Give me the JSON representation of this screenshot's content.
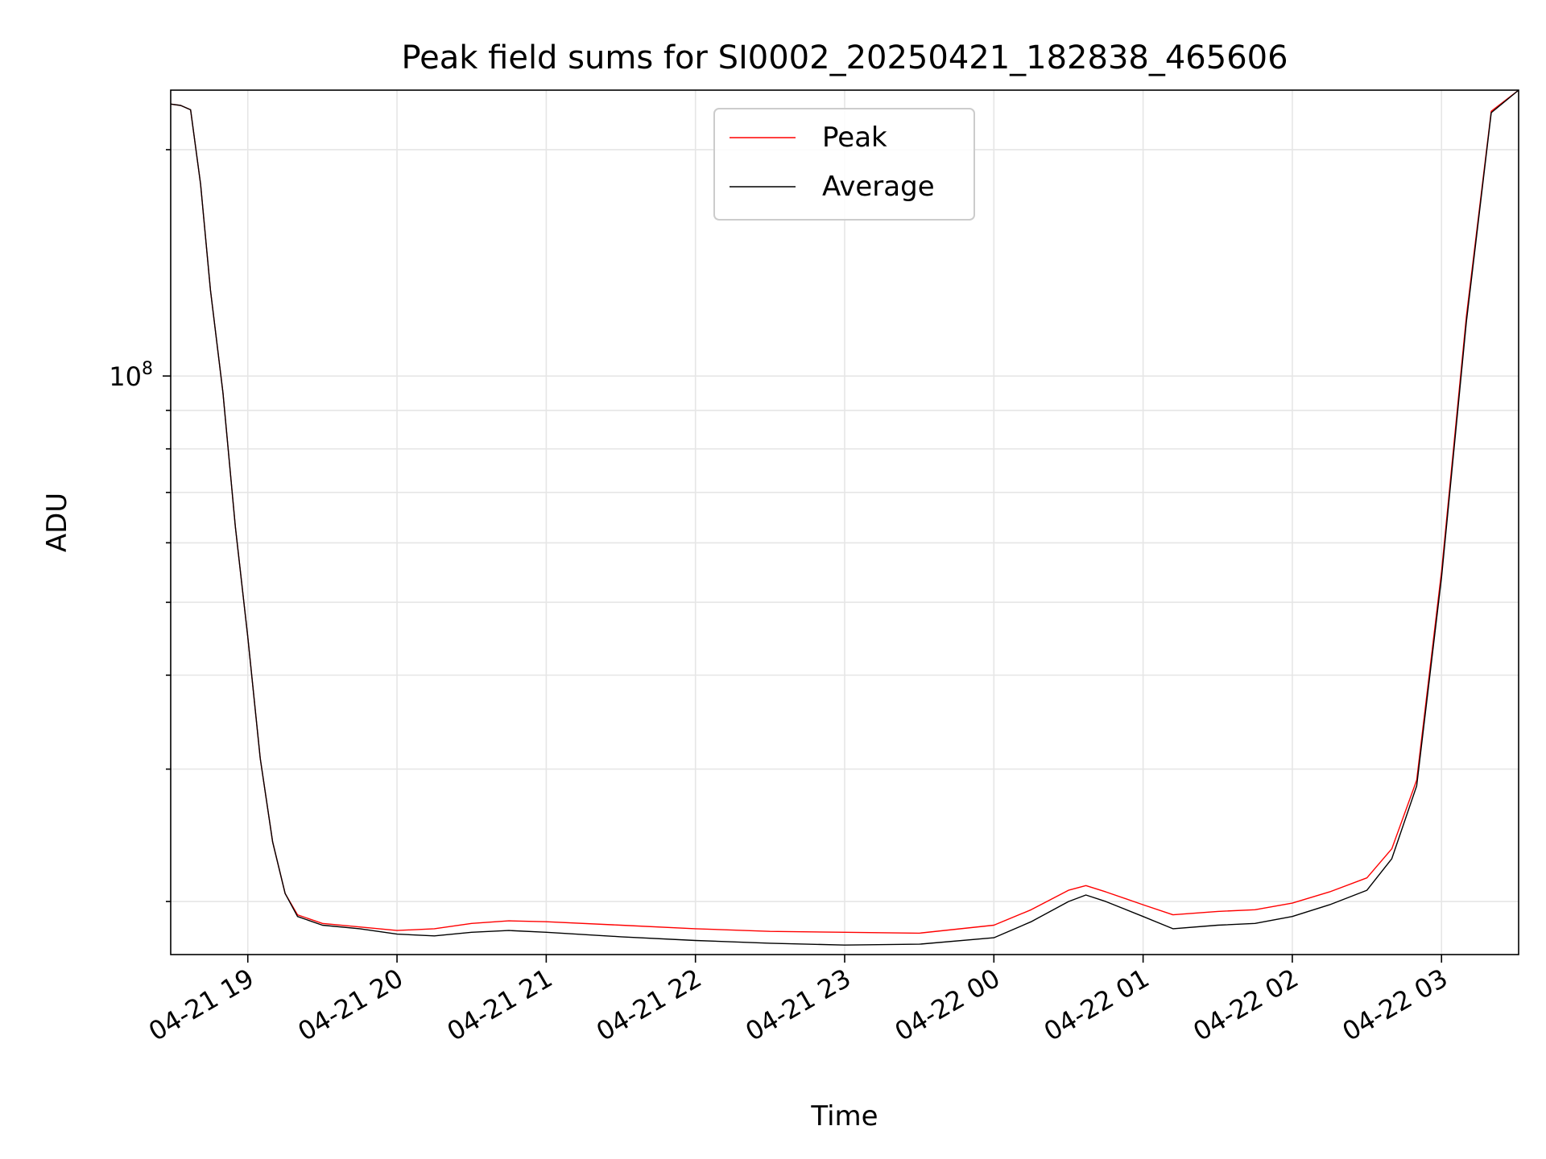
{
  "chart_data": {
    "type": "line",
    "title": "Peak field sums for SI0002_20250421_182838_465606",
    "xlabel": "Time",
    "ylabel": "ADU",
    "y_scale": "log",
    "ylim": [
      17000000,
      240000000
    ],
    "xlim": [
      "2025-04-21 18:29",
      "2025-04-22 03:31"
    ],
    "x_ticks": [
      "04-21 19",
      "04-21 20",
      "04-21 21",
      "04-21 22",
      "04-21 23",
      "04-22 00",
      "04-22 01",
      "04-22 02",
      "04-22 03"
    ],
    "y_tick_label": {
      "base": "10",
      "exponent": "8",
      "value": 100000000
    },
    "grid": true,
    "legend_position": "top-center",
    "colors": {
      "peak": "#ff0000",
      "average": "#000000",
      "grid": "#e6e6e6"
    },
    "series": [
      {
        "name": "Peak",
        "x": [
          "2025-04-21 18:29",
          "2025-04-21 18:33",
          "2025-04-21 18:37",
          "2025-04-21 18:41",
          "2025-04-21 18:45",
          "2025-04-21 18:50",
          "2025-04-21 18:55",
          "2025-04-21 19:00",
          "2025-04-21 19:05",
          "2025-04-21 19:10",
          "2025-04-21 19:15",
          "2025-04-21 19:20",
          "2025-04-21 19:30",
          "2025-04-21 19:45",
          "2025-04-21 20:00",
          "2025-04-21 20:15",
          "2025-04-21 20:30",
          "2025-04-21 20:45",
          "2025-04-21 21:00",
          "2025-04-21 21:30",
          "2025-04-21 22:00",
          "2025-04-21 22:30",
          "2025-04-21 23:00",
          "2025-04-21 23:30",
          "2025-04-22 00:00",
          "2025-04-22 00:15",
          "2025-04-22 00:30",
          "2025-04-22 00:37",
          "2025-04-22 00:45",
          "2025-04-22 01:00",
          "2025-04-22 01:12",
          "2025-04-22 01:30",
          "2025-04-22 01:45",
          "2025-04-22 02:00",
          "2025-04-22 02:15",
          "2025-04-22 02:30",
          "2025-04-22 02:40",
          "2025-04-22 02:50",
          "2025-04-22 03:00",
          "2025-04-22 03:10",
          "2025-04-22 03:20",
          "2025-04-22 03:31"
        ],
        "values": [
          230000000,
          229000000,
          226000000,
          180000000,
          130000000,
          95000000,
          63000000,
          45000000,
          31000000,
          24000000,
          20500000,
          19200000,
          18700000,
          18500000,
          18300000,
          18400000,
          18700000,
          18850000,
          18800000,
          18600000,
          18400000,
          18250000,
          18200000,
          18150000,
          18600000,
          19500000,
          20700000,
          21000000,
          20600000,
          19800000,
          19200000,
          19400000,
          19500000,
          19900000,
          20600000,
          21500000,
          23500000,
          29000000,
          55000000,
          120000000,
          225000000,
          240000000
        ]
      },
      {
        "name": "Average",
        "x": [
          "2025-04-21 18:29",
          "2025-04-21 18:33",
          "2025-04-21 18:37",
          "2025-04-21 18:41",
          "2025-04-21 18:45",
          "2025-04-21 18:50",
          "2025-04-21 18:55",
          "2025-04-21 19:00",
          "2025-04-21 19:05",
          "2025-04-21 19:10",
          "2025-04-21 19:15",
          "2025-04-21 19:20",
          "2025-04-21 19:30",
          "2025-04-21 19:45",
          "2025-04-21 20:00",
          "2025-04-21 20:15",
          "2025-04-21 20:30",
          "2025-04-21 20:45",
          "2025-04-21 21:00",
          "2025-04-21 21:30",
          "2025-04-21 22:00",
          "2025-04-21 22:30",
          "2025-04-21 23:00",
          "2025-04-21 23:30",
          "2025-04-22 00:00",
          "2025-04-22 00:15",
          "2025-04-22 00:30",
          "2025-04-22 00:37",
          "2025-04-22 00:45",
          "2025-04-22 01:00",
          "2025-04-22 01:12",
          "2025-04-22 01:30",
          "2025-04-22 01:45",
          "2025-04-22 02:00",
          "2025-04-22 02:15",
          "2025-04-22 02:30",
          "2025-04-22 02:40",
          "2025-04-22 02:50",
          "2025-04-22 03:00",
          "2025-04-22 03:10",
          "2025-04-22 03:20",
          "2025-04-22 03:31"
        ],
        "values": [
          230000000,
          229000000,
          226000000,
          180000000,
          130000000,
          95000000,
          63000000,
          45000000,
          31000000,
          24000000,
          20500000,
          19100000,
          18600000,
          18400000,
          18100000,
          18000000,
          18200000,
          18300000,
          18200000,
          17950000,
          17750000,
          17600000,
          17500000,
          17550000,
          17900000,
          18800000,
          20000000,
          20400000,
          20000000,
          19100000,
          18400000,
          18600000,
          18700000,
          19100000,
          19800000,
          20700000,
          22800000,
          28500000,
          54000000,
          118000000,
          224000000,
          240000000
        ]
      }
    ]
  }
}
